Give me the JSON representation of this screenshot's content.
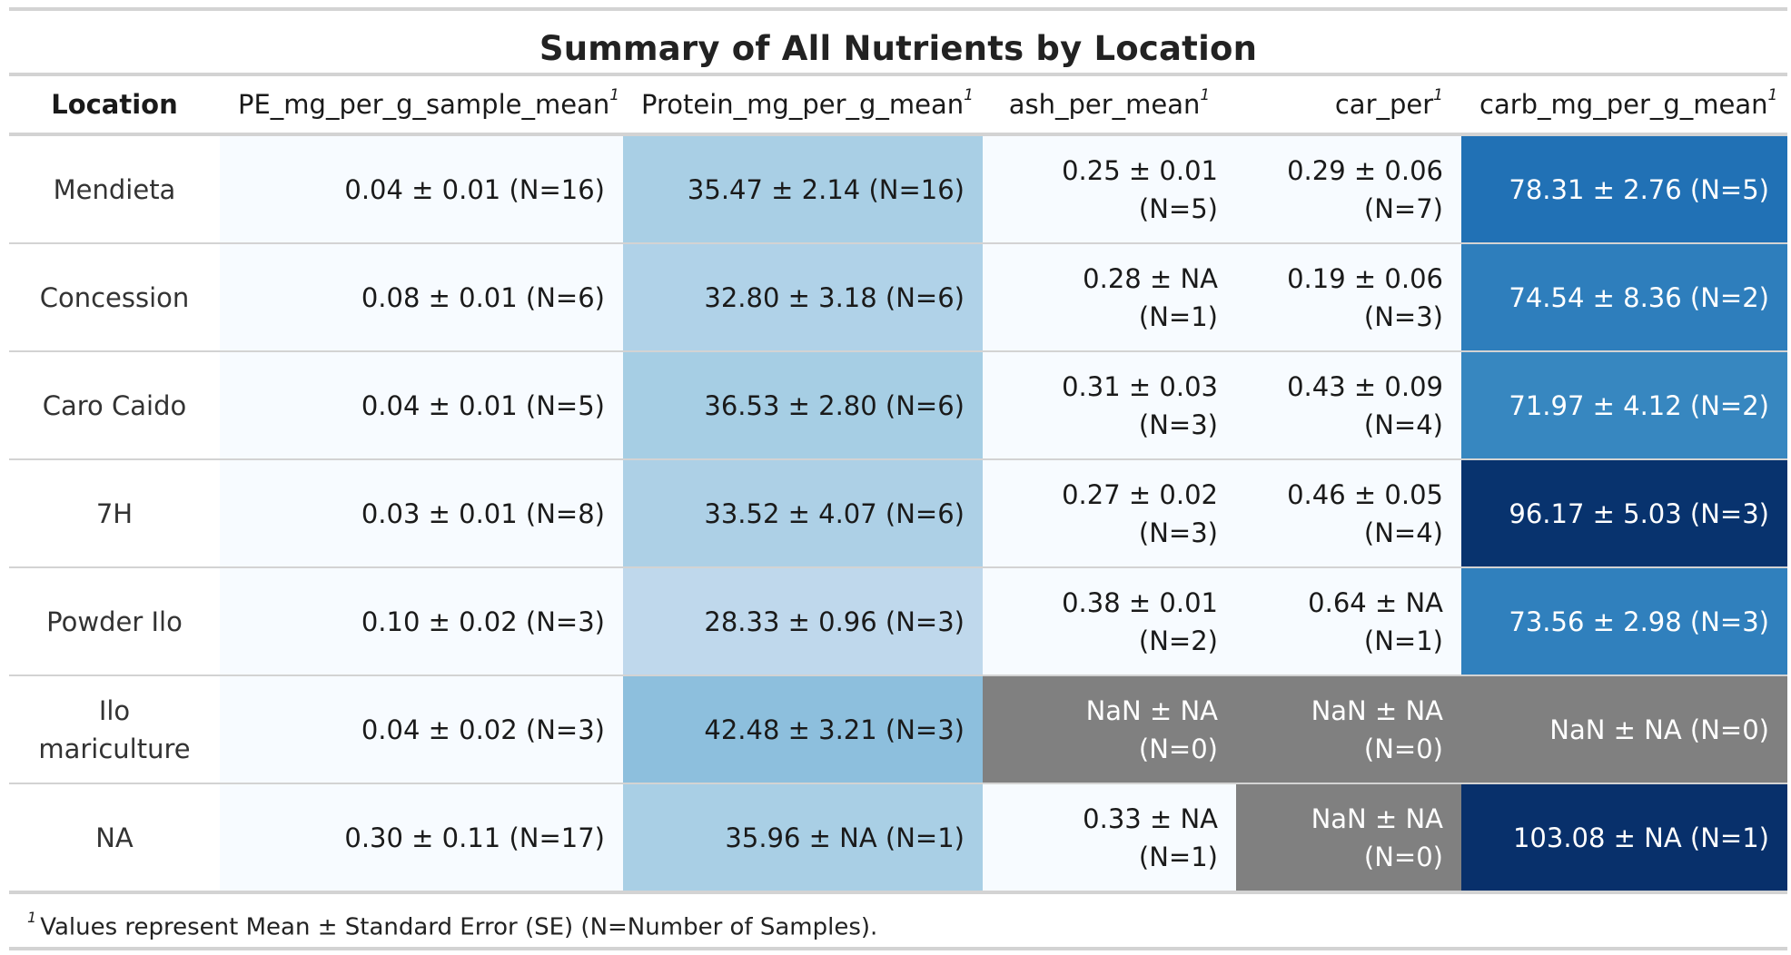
{
  "title": "Summary of All Nutrients by Location",
  "footnote_mark": "1",
  "columns": [
    {
      "label": "Location",
      "note": ""
    },
    {
      "label": "PE_mg_per_g_sample_mean",
      "note": "1"
    },
    {
      "label": "Protein_mg_per_g_mean",
      "note": "1"
    },
    {
      "label": "ash_per_mean",
      "note": "1"
    },
    {
      "label": "car_per",
      "note": "1"
    },
    {
      "label": "carb_mg_per_g_mean",
      "note": "1"
    }
  ],
  "rows": [
    {
      "location": "Mendieta",
      "cells": [
        {
          "text": "0.04 ± 0.01 (N=16)",
          "bg": "#f7fbff",
          "fg": "#1a1a1a"
        },
        {
          "text": "35.47 ± 2.14 (N=16)",
          "bg": "#a9cfe5",
          "fg": "#1a1a1a"
        },
        {
          "text": "0.25 ± 0.01 (N=5)",
          "bg": "#f7fbff",
          "fg": "#1a1a1a"
        },
        {
          "text": "0.29 ± 0.06 (N=7)",
          "bg": "#f7fbff",
          "fg": "#1a1a1a"
        },
        {
          "text": "78.31 ± 2.76 (N=5)",
          "bg": "#2171b5",
          "fg": "#ffffff"
        }
      ]
    },
    {
      "location": "Concession",
      "cells": [
        {
          "text": "0.08 ± 0.01 (N=6)",
          "bg": "#f7fbff",
          "fg": "#1a1a1a"
        },
        {
          "text": "32.80 ± 3.18 (N=6)",
          "bg": "#b0d2e8",
          "fg": "#1a1a1a"
        },
        {
          "text": "0.28 ± NA (N=1)",
          "bg": "#f7fbff",
          "fg": "#1a1a1a"
        },
        {
          "text": "0.19 ± 0.06 (N=3)",
          "bg": "#f7fbff",
          "fg": "#1a1a1a"
        },
        {
          "text": "74.54 ± 8.36 (N=2)",
          "bg": "#2e7ebc",
          "fg": "#ffffff"
        }
      ]
    },
    {
      "location": "Caro Caido",
      "cells": [
        {
          "text": "0.04 ± 0.01 (N=5)",
          "bg": "#f7fbff",
          "fg": "#1a1a1a"
        },
        {
          "text": "36.53 ± 2.80 (N=6)",
          "bg": "#a6cee4",
          "fg": "#1a1a1a"
        },
        {
          "text": "0.31 ± 0.03 (N=3)",
          "bg": "#f7fbff",
          "fg": "#1a1a1a"
        },
        {
          "text": "0.43 ± 0.09 (N=4)",
          "bg": "#f7fbff",
          "fg": "#1a1a1a"
        },
        {
          "text": "71.97 ± 4.12 (N=2)",
          "bg": "#3787c0",
          "fg": "#ffffff"
        }
      ]
    },
    {
      "location": "7H",
      "cells": [
        {
          "text": "0.03 ± 0.01 (N=8)",
          "bg": "#f7fbff",
          "fg": "#1a1a1a"
        },
        {
          "text": "33.52 ± 4.07 (N=6)",
          "bg": "#add0e6",
          "fg": "#1a1a1a"
        },
        {
          "text": "0.27 ± 0.02 (N=3)",
          "bg": "#f7fbff",
          "fg": "#1a1a1a"
        },
        {
          "text": "0.46 ± 0.05 (N=4)",
          "bg": "#f7fbff",
          "fg": "#1a1a1a"
        },
        {
          "text": "96.17 ± 5.03 (N=3)",
          "bg": "#08336e",
          "fg": "#ffffff"
        }
      ]
    },
    {
      "location": "Powder Ilo",
      "cells": [
        {
          "text": "0.10 ± 0.02 (N=3)",
          "bg": "#f7fbff",
          "fg": "#1a1a1a"
        },
        {
          "text": "28.33 ± 0.96 (N=3)",
          "bg": "#bfd8ec",
          "fg": "#1a1a1a"
        },
        {
          "text": "0.38 ± 0.01 (N=2)",
          "bg": "#f7fbff",
          "fg": "#1a1a1a"
        },
        {
          "text": "0.64 ± NA (N=1)",
          "bg": "#f7fbff",
          "fg": "#1a1a1a"
        },
        {
          "text": "73.56 ± 2.98 (N=3)",
          "bg": "#3080bd",
          "fg": "#ffffff"
        }
      ]
    },
    {
      "location": "Ilo mariculture",
      "cells": [
        {
          "text": "0.04 ± 0.02 (N=3)",
          "bg": "#f7fbff",
          "fg": "#1a1a1a"
        },
        {
          "text": "42.48 ± 3.21 (N=3)",
          "bg": "#8dbfdd",
          "fg": "#1a1a1a"
        },
        {
          "text": "NaN ± NA (N=0)",
          "bg": "#808080",
          "fg": "#ffffff"
        },
        {
          "text": "NaN ± NA (N=0)",
          "bg": "#808080",
          "fg": "#ffffff"
        },
        {
          "text": "NaN ± NA (N=0)",
          "bg": "#808080",
          "fg": "#ffffff"
        }
      ]
    },
    {
      "location": "NA",
      "cells": [
        {
          "text": "0.30 ± 0.11 (N=17)",
          "bg": "#f7fbff",
          "fg": "#1a1a1a"
        },
        {
          "text": "35.96 ± NA (N=1)",
          "bg": "#a9cfe5",
          "fg": "#1a1a1a"
        },
        {
          "text": "0.33 ± NA (N=1)",
          "bg": "#f7fbff",
          "fg": "#1a1a1a"
        },
        {
          "text": "NaN ± NA (N=0)",
          "bg": "#808080",
          "fg": "#ffffff"
        },
        {
          "text": "103.08 ± NA (N=1)",
          "bg": "#08306b",
          "fg": "#ffffff"
        }
      ]
    }
  ],
  "footnote": "Values represent Mean ± Standard Error (SE) (N=Number of Samples)."
}
